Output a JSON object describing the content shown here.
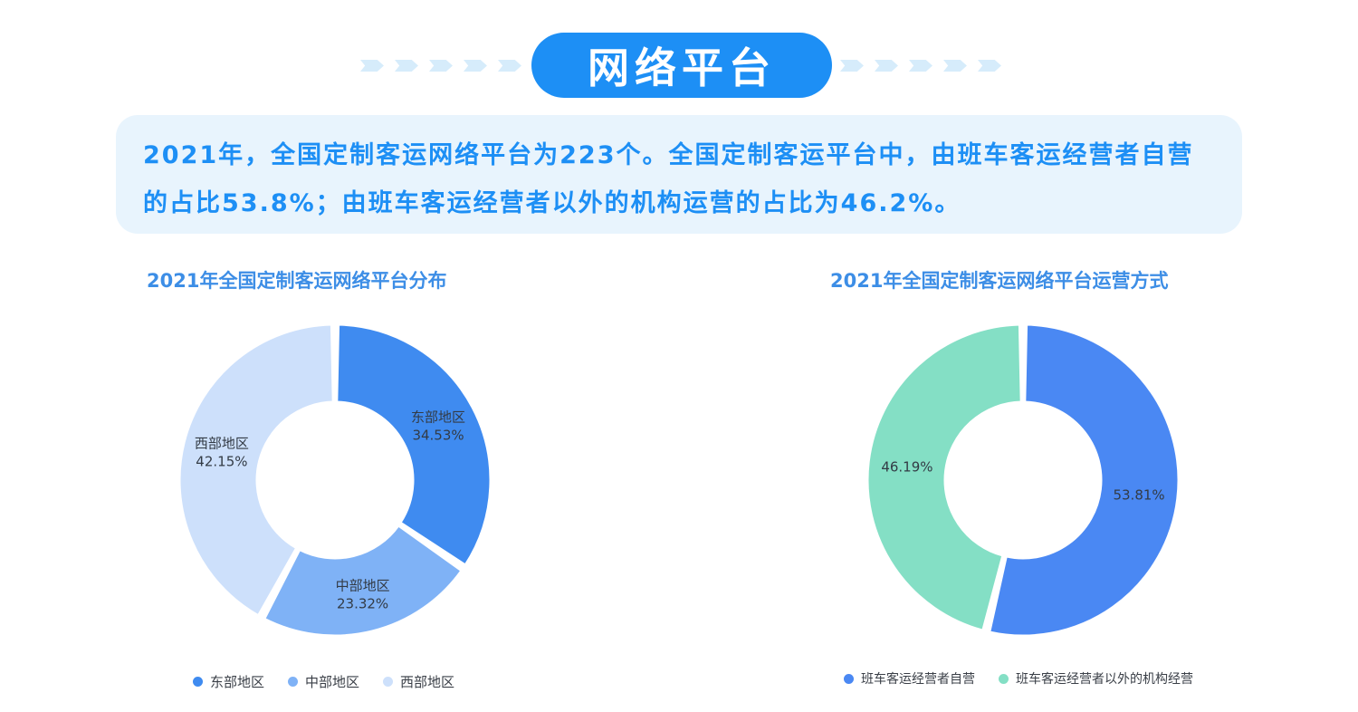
{
  "header": {
    "title": "网络平台"
  },
  "summary": {
    "text": "2021年，全国定制客运网络平台为223个。全国定制客运平台中，由班车客运经营者自营的占比53.8%；由班车客运经营者以外的机构运营的占比为46.2%。"
  },
  "colors": {
    "accent": "#1d8ff5",
    "east": "#3f8bf0",
    "central": "#7fb2f6",
    "west": "#cde0fb",
    "self_run": "#4a88f3",
    "other_run": "#84dfc5"
  },
  "chart_data": [
    {
      "type": "pie",
      "title": "2021年全国定制客运网络平台分布",
      "donut": true,
      "legend_position": "bottom",
      "series": [
        {
          "name": "东部地区",
          "value": 34.53,
          "label": "34.53%",
          "color": "#3f8bf0"
        },
        {
          "name": "中部地区",
          "value": 23.32,
          "label": "23.32%",
          "color": "#7fb2f6"
        },
        {
          "name": "西部地区",
          "value": 42.15,
          "label": "42.15%",
          "color": "#cde0fb"
        }
      ],
      "show_names_on_slices": true
    },
    {
      "type": "pie",
      "title": "2021年全国定制客运网络平台运营方式",
      "donut": true,
      "legend_position": "bottom",
      "series": [
        {
          "name": "班车客运经营者自营",
          "value": 53.81,
          "label": "53.81%",
          "color": "#4a88f3"
        },
        {
          "name": "班车客运经营者以外的机构经营",
          "value": 46.19,
          "label": "46.19%",
          "color": "#84dfc5"
        }
      ],
      "show_names_on_slices": false
    }
  ]
}
